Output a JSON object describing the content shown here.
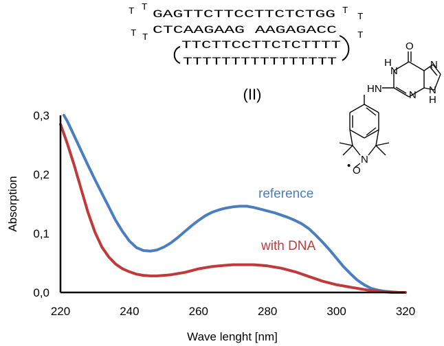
{
  "figure": {
    "compound_label": "(II)",
    "sequence": {
      "top_left_loop": [
        "T",
        "T"
      ],
      "strand1": "GAGTTCTTCCTTCTCTGG",
      "top_right_loop": [
        "T",
        "T"
      ],
      "mid_left_loop": [
        "T",
        "T"
      ],
      "strand2": "CTCAAGAAG AAGAGACC",
      "mid_right_loop": "T",
      "strand3": "TTCTTCCTTCTCTTTT",
      "strand4": "TTTTTTTTTTTTTTTT"
    },
    "molecule_labels": {
      "o_top": "O",
      "nh_left": "H",
      "n_left": "N",
      "n_right": "N",
      "n_bottom": "N",
      "nh_bottom": "H",
      "hn_link": "HN",
      "n_iso": "N",
      "o_radical": "O",
      "dot": "•"
    }
  },
  "colors": {
    "reference": "#4a7ebf",
    "with_dna": "#c0393b",
    "axis": "#000000"
  },
  "chart_data": {
    "type": "line",
    "title": "",
    "xlabel": "Wave lenght [nm]",
    "ylabel": "Absorption",
    "xlim": [
      220,
      320
    ],
    "ylim": [
      0,
      0.3
    ],
    "x_ticks": [
      220,
      240,
      260,
      280,
      300,
      320
    ],
    "x_tick_labels": [
      "220",
      "240",
      "260",
      "280",
      "300",
      "320"
    ],
    "y_ticks": [
      0,
      0.1,
      0.2,
      0.3
    ],
    "y_tick_labels": [
      "0,0",
      "0,1",
      "0,2",
      "0,3"
    ],
    "grid": false,
    "legend": "inline labels",
    "series": [
      {
        "name": "reference",
        "x": [
          221,
          222,
          224,
          226,
          228,
          230,
          232,
          234,
          236,
          238,
          240,
          242,
          244,
          246,
          248,
          250,
          252,
          254,
          256,
          258,
          260,
          262,
          264,
          266,
          268,
          270,
          272,
          274,
          276,
          278,
          280,
          282,
          284,
          286,
          288,
          290,
          292,
          294,
          296,
          298,
          300,
          302,
          304,
          306,
          308,
          310,
          312,
          314,
          316,
          318,
          320
        ],
        "values": [
          0.3,
          0.29,
          0.265,
          0.24,
          0.215,
          0.191,
          0.168,
          0.145,
          0.122,
          0.103,
          0.087,
          0.076,
          0.071,
          0.07,
          0.072,
          0.077,
          0.084,
          0.093,
          0.103,
          0.113,
          0.122,
          0.13,
          0.136,
          0.14,
          0.143,
          0.145,
          0.146,
          0.146,
          0.144,
          0.141,
          0.138,
          0.135,
          0.131,
          0.127,
          0.122,
          0.116,
          0.108,
          0.097,
          0.085,
          0.072,
          0.058,
          0.044,
          0.032,
          0.021,
          0.013,
          0.007,
          0.004,
          0.002,
          0.001,
          0.0,
          0.0
        ]
      },
      {
        "name": "with DNA",
        "x": [
          220,
          222,
          224,
          226,
          228,
          230,
          232,
          234,
          236,
          238,
          240,
          242,
          244,
          246,
          248,
          250,
          252,
          254,
          256,
          258,
          260,
          262,
          264,
          266,
          268,
          270,
          272,
          274,
          276,
          278,
          280,
          282,
          284,
          286,
          288,
          290,
          292,
          294,
          296,
          298,
          300,
          302,
          304,
          306,
          308,
          310,
          312,
          314,
          316,
          318,
          320
        ],
        "values": [
          0.285,
          0.252,
          0.215,
          0.175,
          0.135,
          0.102,
          0.077,
          0.06,
          0.048,
          0.04,
          0.035,
          0.031,
          0.029,
          0.028,
          0.028,
          0.029,
          0.03,
          0.032,
          0.034,
          0.037,
          0.04,
          0.042,
          0.044,
          0.045,
          0.046,
          0.047,
          0.047,
          0.047,
          0.047,
          0.046,
          0.045,
          0.043,
          0.041,
          0.038,
          0.035,
          0.031,
          0.027,
          0.023,
          0.019,
          0.016,
          0.013,
          0.011,
          0.009,
          0.007,
          0.005,
          0.003,
          0.002,
          0.001,
          0.0,
          0.0,
          0.0
        ]
      }
    ],
    "annotations": [
      {
        "text": "reference",
        "series": "reference"
      },
      {
        "text": "with DNA",
        "series": "with DNA"
      }
    ]
  }
}
